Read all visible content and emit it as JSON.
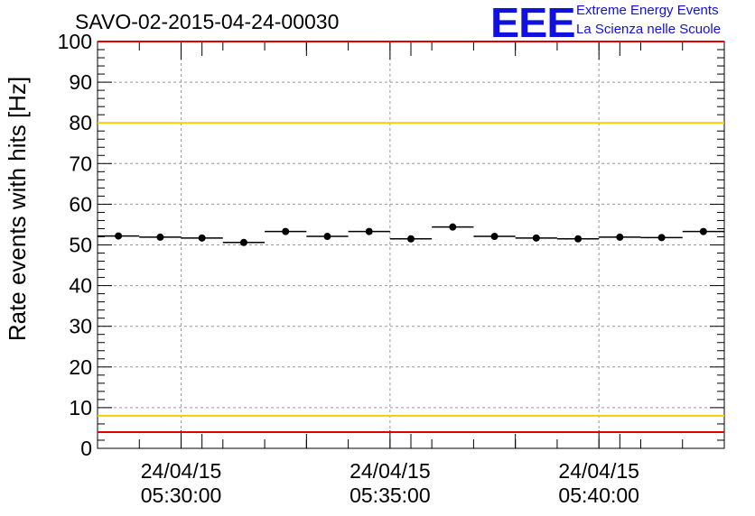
{
  "header": {
    "run_title": "SAVO-02-2015-04-24-00030",
    "logo_text": "EEE",
    "logo_line1": "Extreme Energy Events",
    "logo_line2": "La Scienza nelle Scuole",
    "logo_color": "#1010e0"
  },
  "chart_data": {
    "type": "scatter",
    "title": "SAVO-02-2015-04-24-00030",
    "xlabel": "",
    "ylabel": "Rate events with hits [Hz]",
    "xlim": [
      "05:28:00",
      "05:43:00"
    ],
    "ylim": [
      0,
      100
    ],
    "grid": true,
    "y_ticks": [
      0,
      10,
      20,
      30,
      40,
      50,
      60,
      70,
      80,
      90,
      100
    ],
    "x_ticks": [
      {
        "time": "05:30:00",
        "date": "24/04/15",
        "label_time": "05:30:00"
      },
      {
        "time": "05:35:00",
        "date": "24/04/15",
        "label_time": "05:35:00"
      },
      {
        "time": "05:40:00",
        "date": "24/04/15",
        "label_time": "05:40:00"
      }
    ],
    "points": [
      {
        "x_start": "05:28:00",
        "x_end": "05:29:00",
        "y": 52.2
      },
      {
        "x_start": "05:29:00",
        "x_end": "05:30:00",
        "y": 51.9
      },
      {
        "x_start": "05:30:00",
        "x_end": "05:31:00",
        "y": 51.7
      },
      {
        "x_start": "05:31:00",
        "x_end": "05:32:00",
        "y": 50.6
      },
      {
        "x_start": "05:32:00",
        "x_end": "05:33:00",
        "y": 53.3
      },
      {
        "x_start": "05:33:00",
        "x_end": "05:34:00",
        "y": 52.1
      },
      {
        "x_start": "05:34:00",
        "x_end": "05:35:00",
        "y": 53.3
      },
      {
        "x_start": "05:35:00",
        "x_end": "05:36:00",
        "y": 51.5
      },
      {
        "x_start": "05:36:00",
        "x_end": "05:37:00",
        "y": 54.4
      },
      {
        "x_start": "05:37:00",
        "x_end": "05:38:00",
        "y": 52.1
      },
      {
        "x_start": "05:38:00",
        "x_end": "05:39:00",
        "y": 51.7
      },
      {
        "x_start": "05:39:00",
        "x_end": "05:40:00",
        "y": 51.5
      },
      {
        "x_start": "05:40:00",
        "x_end": "05:41:00",
        "y": 51.9
      },
      {
        "x_start": "05:41:00",
        "x_end": "05:42:00",
        "y": 51.8
      },
      {
        "x_start": "05:42:00",
        "x_end": "05:43:00",
        "y": 53.3
      }
    ],
    "reference_lines": [
      {
        "y": 100,
        "color": "#e00000"
      },
      {
        "y": 80,
        "color": "#f0d000"
      },
      {
        "y": 8,
        "color": "#f0d000"
      },
      {
        "y": 4,
        "color": "#e00000"
      }
    ],
    "marker_color": "#000000",
    "grid_color": "#999999"
  }
}
